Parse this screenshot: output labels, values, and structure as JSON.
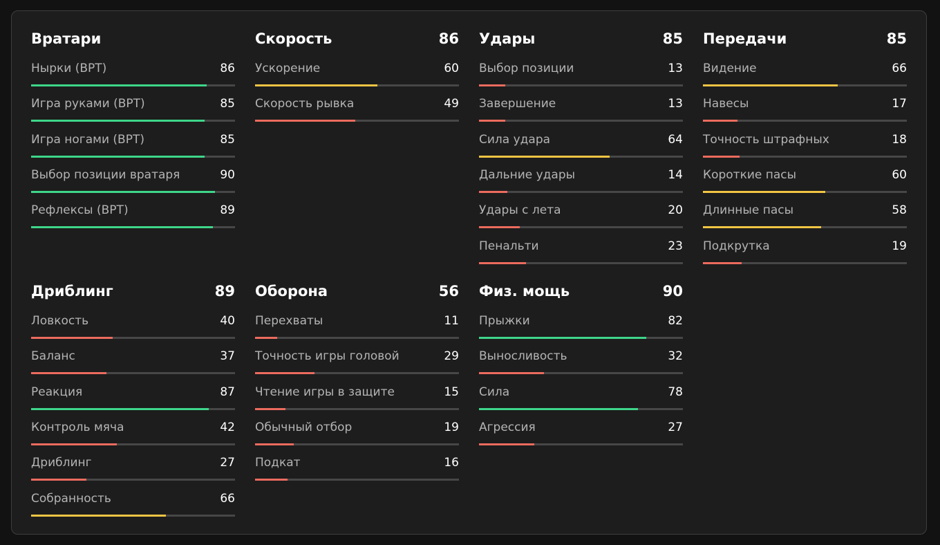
{
  "xlim": [
    0,
    100
  ],
  "groups": [
    {
      "title": "Вратари",
      "stats": [
        {
          "label": "Нырки (ВРТ)",
          "value": 86,
          "color": "#3ed68a"
        },
        {
          "label": "Игра руками (ВРТ)",
          "value": 85,
          "color": "#3ed68a"
        },
        {
          "label": "Игра ногами (ВРТ)",
          "value": 85,
          "color": "#3ed68a"
        },
        {
          "label": "Выбор позиции вратаря",
          "value": 90,
          "color": "#3ed68a"
        },
        {
          "label": "Рефлексы (ВРТ)",
          "value": 89,
          "color": "#3ed68a"
        }
      ]
    },
    {
      "title": "Скорость",
      "value": 86,
      "stats": [
        {
          "label": "Ускорение",
          "value": 60,
          "color": "#f2c544"
        },
        {
          "label": "Скорость рывка",
          "value": 49,
          "color": "#ec6b5e"
        }
      ]
    },
    {
      "title": "Удары",
      "value": 85,
      "stats": [
        {
          "label": "Выбор позиции",
          "value": 13,
          "color": "#ec6b5e"
        },
        {
          "label": "Завершение",
          "value": 13,
          "color": "#ec6b5e"
        },
        {
          "label": "Сила удара",
          "value": 64,
          "color": "#f2c544"
        },
        {
          "label": "Дальние удары",
          "value": 14,
          "color": "#ec6b5e"
        },
        {
          "label": "Удары с лета",
          "value": 20,
          "color": "#ec6b5e"
        },
        {
          "label": "Пенальти",
          "value": 23,
          "color": "#ec6b5e"
        }
      ]
    },
    {
      "title": "Передачи",
      "value": 85,
      "stats": [
        {
          "label": "Видение",
          "value": 66,
          "color": "#f2c544"
        },
        {
          "label": "Навесы",
          "value": 17,
          "color": "#ec6b5e"
        },
        {
          "label": "Точность штрафных",
          "value": 18,
          "color": "#ec6b5e"
        },
        {
          "label": "Короткие пасы",
          "value": 60,
          "color": "#f2c544"
        },
        {
          "label": "Длинные пасы",
          "value": 58,
          "color": "#f2c544"
        },
        {
          "label": "Подкрутка",
          "value": 19,
          "color": "#ec6b5e"
        }
      ]
    },
    {
      "title": "Дриблинг",
      "value": 89,
      "stats": [
        {
          "label": "Ловкость",
          "value": 40,
          "color": "#ec6b5e"
        },
        {
          "label": "Баланс",
          "value": 37,
          "color": "#ec6b5e"
        },
        {
          "label": "Реакция",
          "value": 87,
          "color": "#3ed68a"
        },
        {
          "label": "Контроль мяча",
          "value": 42,
          "color": "#ec6b5e"
        },
        {
          "label": "Дриблинг",
          "value": 27,
          "color": "#ec6b5e"
        },
        {
          "label": "Собранность",
          "value": 66,
          "color": "#f2c544"
        }
      ]
    },
    {
      "title": "Оборона",
      "value": 56,
      "stats": [
        {
          "label": "Перехваты",
          "value": 11,
          "color": "#ec6b5e"
        },
        {
          "label": "Точность игры головой",
          "value": 29,
          "color": "#ec6b5e"
        },
        {
          "label": "Чтение игры в защите",
          "value": 15,
          "color": "#ec6b5e"
        },
        {
          "label": "Обычный отбор",
          "value": 19,
          "color": "#ec6b5e"
        },
        {
          "label": "Подкат",
          "value": 16,
          "color": "#ec6b5e"
        }
      ]
    },
    {
      "title": "Физ. мощь",
      "value": 90,
      "stats": [
        {
          "label": "Прыжки",
          "value": 82,
          "color": "#3ed68a"
        },
        {
          "label": "Выносливость",
          "value": 32,
          "color": "#ec6b5e"
        },
        {
          "label": "Сила",
          "value": 78,
          "color": "#3ed68a"
        },
        {
          "label": "Агрессия",
          "value": 27,
          "color": "#ec6b5e"
        }
      ]
    }
  ]
}
